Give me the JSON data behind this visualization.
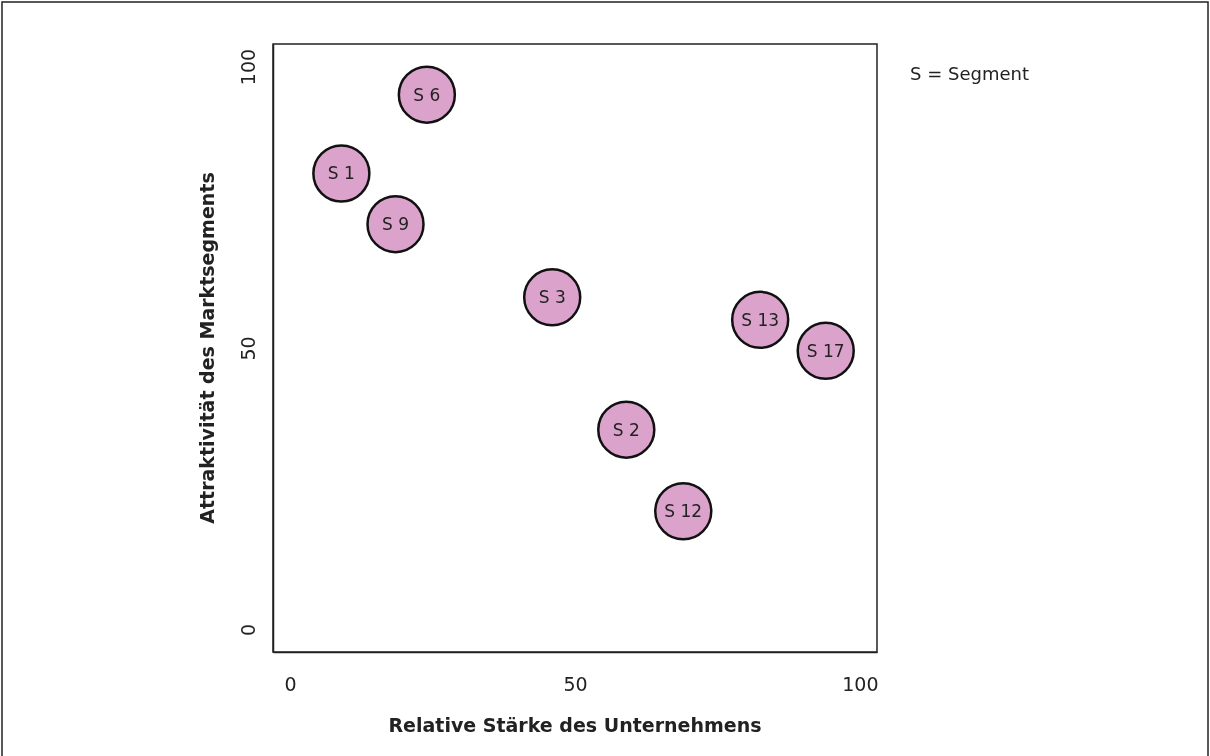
{
  "chart_data": {
    "type": "scatter",
    "xlabel": "Relative Stärke des Unternehmens",
    "ylabel": "Attraktivität des Marktsegments",
    "xlim": [
      -3,
      103
    ],
    "ylim": [
      -4,
      104
    ],
    "xticks": [
      0,
      50,
      100
    ],
    "yticks": [
      0,
      50,
      100
    ],
    "grid": false,
    "marker": "circle",
    "legend": false,
    "annotations": [
      "S = Segment"
    ],
    "series": [
      {
        "name": "S 1",
        "color": "#dba3cc",
        "x": [
          9
        ],
        "values": [
          81
        ]
      },
      {
        "name": "S 6",
        "color": "#dba3cc",
        "x": [
          24
        ],
        "values": [
          95
        ]
      },
      {
        "name": "S 9",
        "color": "#dba3cc",
        "x": [
          18.5
        ],
        "values": [
          72
        ]
      },
      {
        "name": "S 3",
        "color": "#dba3cc",
        "x": [
          46
        ],
        "values": [
          59
        ]
      },
      {
        "name": "S 2",
        "color": "#dba3cc",
        "x": [
          59
        ],
        "values": [
          35.5
        ]
      },
      {
        "name": "S 12",
        "color": "#dba3cc",
        "x": [
          69
        ],
        "values": [
          21
        ]
      },
      {
        "name": "S 13",
        "color": "#dba3cc",
        "x": [
          82.5
        ],
        "values": [
          55
        ]
      },
      {
        "name": "S 17",
        "color": "#dba3cc",
        "x": [
          94
        ],
        "values": [
          49.5
        ]
      }
    ]
  }
}
